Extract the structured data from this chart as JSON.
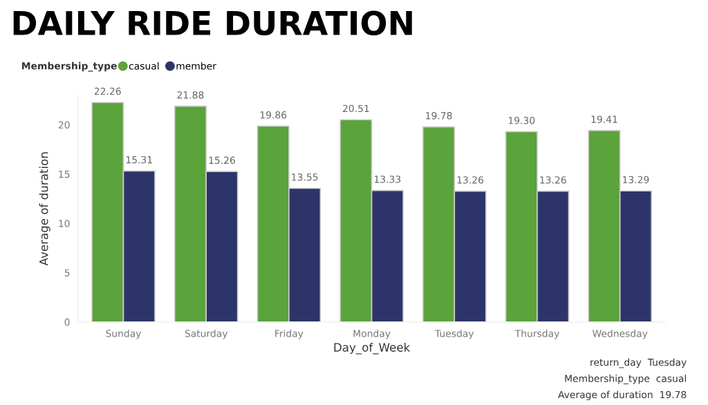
{
  "chart_data": {
    "type": "bar",
    "title": "DAILY RIDE DURATION",
    "categories": [
      "Sunday",
      "Saturday",
      "Friday",
      "Monday",
      "Tuesday",
      "Thursday",
      "Wednesday"
    ],
    "series": [
      {
        "name": "casual",
        "color": "#5ba33b",
        "values": [
          22.26,
          21.88,
          19.86,
          20.51,
          19.78,
          19.3,
          19.41
        ],
        "value_labels": [
          "22.26",
          "21.88",
          "19.86",
          "20.51",
          "19.78",
          "19.30",
          "19.41"
        ]
      },
      {
        "name": "member",
        "color": "#2c3469",
        "values": [
          15.31,
          15.26,
          13.55,
          13.33,
          13.26,
          13.26,
          13.29
        ]
      }
    ],
    "xlabel": "Day_of_Week",
    "ylabel": "Average of duration",
    "legend_title": "Membership_type",
    "ylim": [
      0,
      23
    ],
    "yticks": [
      0,
      5,
      10,
      15,
      20
    ],
    "grid": false,
    "legend": "top left",
    "data_labels": true,
    "annotations": [
      "return_day  Tuesday",
      "Membership_type  casual",
      "Average of duration  19.78"
    ]
  }
}
